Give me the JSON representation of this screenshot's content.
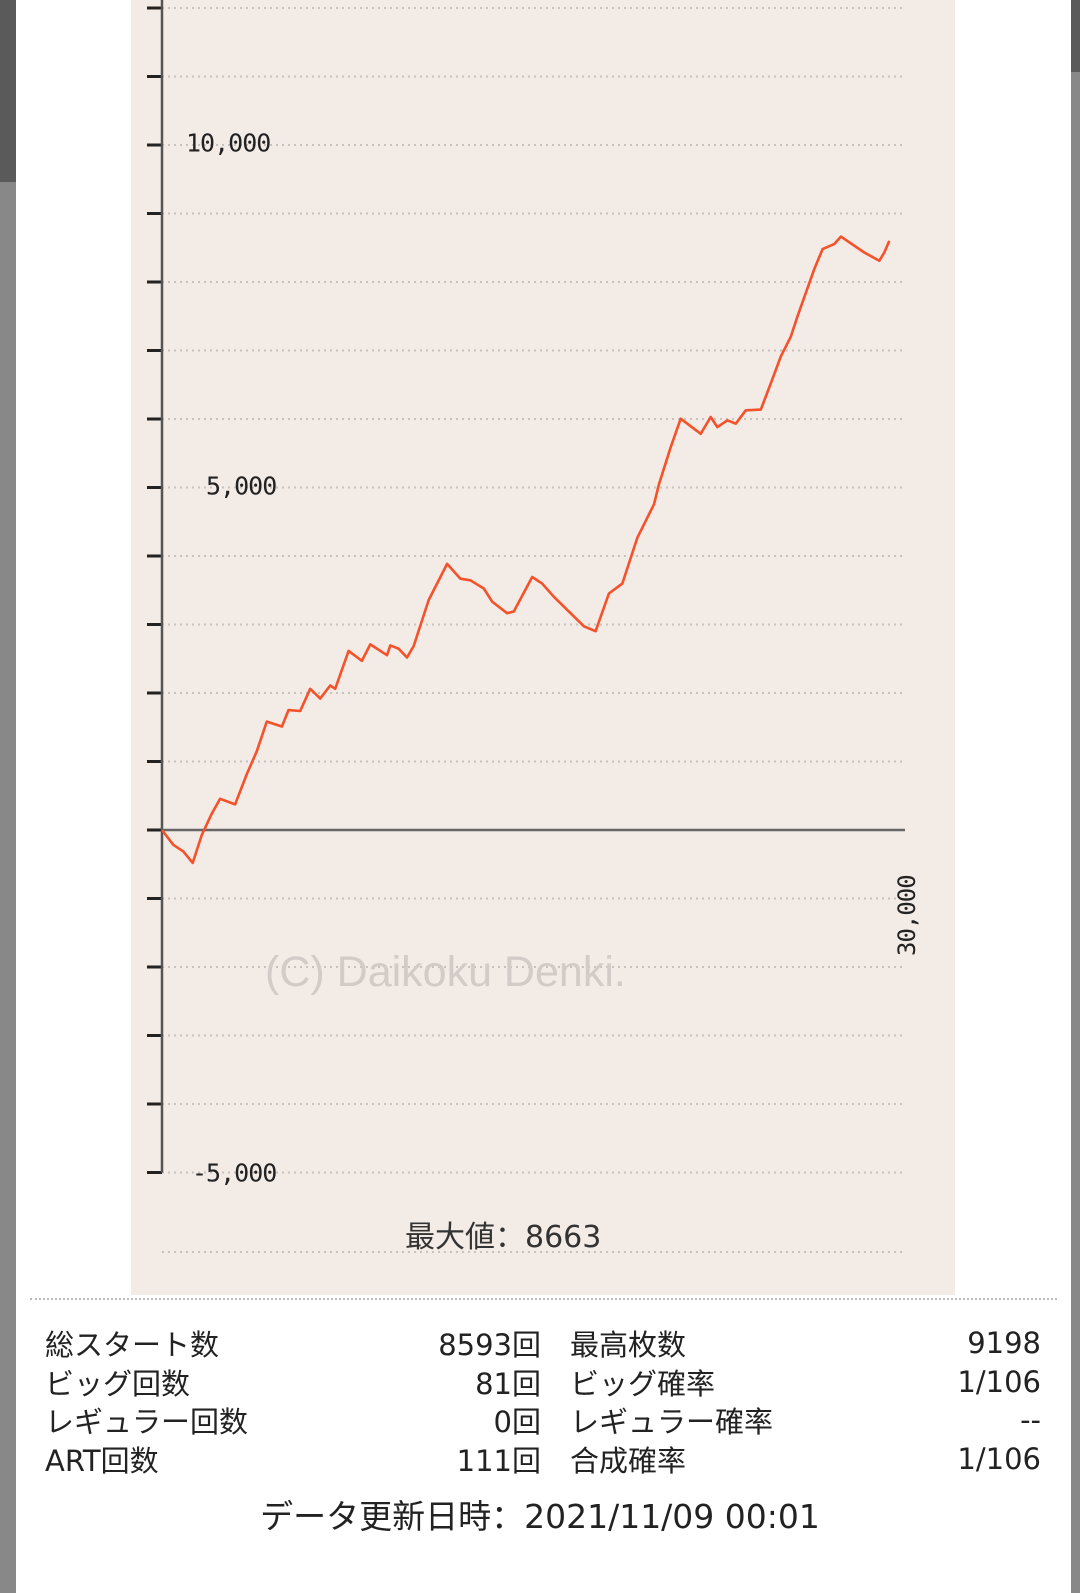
{
  "chart_data": {
    "type": "line",
    "xlim": [
      0,
      30000
    ],
    "ylim": [
      -5000,
      12000
    ],
    "y_tick_labels": [
      "10,000",
      "5,000",
      "-5,000"
    ],
    "x_tick_labels": [
      "30,000"
    ],
    "grid": true,
    "line_color": "#f4522a",
    "background": "#f3ebe6",
    "watermark": "(C) Daikoku Denki.",
    "max_label": "最大値：8663",
    "x": [
      0,
      457,
      861,
      1240,
      1605,
      2009,
      2345,
      2951,
      3425,
      3829,
      4233,
      4840,
      5107,
      5580,
      5984,
      6388,
      6792,
      6995,
      7533,
      8073,
      8410,
      9084,
      9218,
      9555,
      9892,
      10162,
      10768,
      11510,
      12049,
      12453,
      12992,
      13329,
      13935,
      14205,
      14946,
      15350,
      15822,
      17035,
      17507,
      18046,
      18585,
      19192,
      19865,
      20067,
      20539,
      20944,
      21752,
      22156,
      22426,
      22830,
      23167,
      23571,
      24178,
      24582,
      24986,
      25391,
      25660,
      26334,
      26672,
      27143,
      27412,
      28356,
      28962,
      29164,
      29366
    ],
    "y": [
      0,
      -216,
      -312,
      -480,
      -72,
      240,
      456,
      374,
      816,
      1151,
      1583,
      1511,
      1751,
      1737,
      2062,
      1918,
      2110,
      2062,
      2614,
      2470,
      2710,
      2552,
      2695,
      2647,
      2518,
      2686,
      3357,
      3885,
      3669,
      3645,
      3525,
      3334,
      3165,
      3190,
      3693,
      3597,
      3405,
      2974,
      2902,
      3453,
      3597,
      4265,
      4755,
      5049,
      5588,
      6004,
      5784,
      6029,
      5882,
      5981,
      5931,
      6127,
      6137,
      6519,
      6912,
      7206,
      7500,
      8186,
      8480,
      8554,
      8663,
      8431,
      8309,
      8431,
      8600
    ]
  },
  "stats": {
    "rows": [
      {
        "l1": "総スタート数",
        "v1": "8593回",
        "l2": "最高枚数",
        "v2": "9198"
      },
      {
        "l1": "ビッグ回数",
        "v1": "81回",
        "l2": "ビッグ確率",
        "v2": "1/106"
      },
      {
        "l1": "レギュラー回数",
        "v1": "0回",
        "l2": "レギュラー確率",
        "v2": "--"
      },
      {
        "l1": "ART回数",
        "v1": "111回",
        "l2": "合成確率",
        "v2": "1/106"
      }
    ]
  },
  "footer": {
    "updated": "データ更新日時：2021/11/09 00:01"
  }
}
